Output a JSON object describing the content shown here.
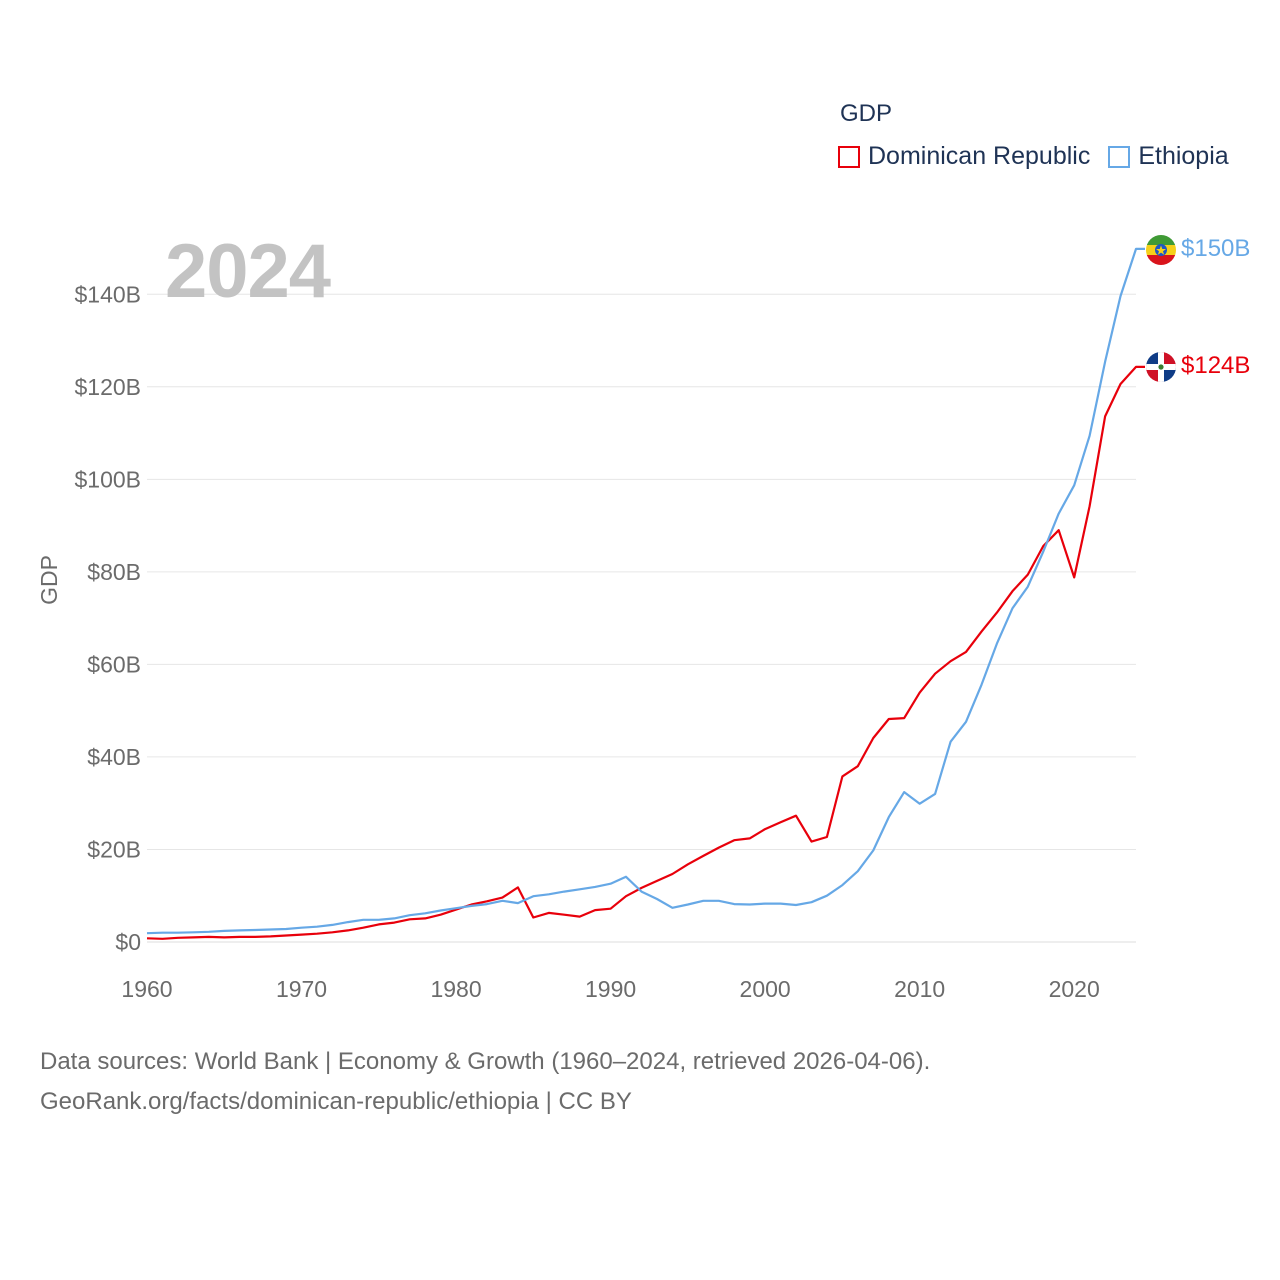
{
  "colors": {
    "dominican": "#e8000b",
    "ethiopia": "#66a8e6",
    "grid": "#e6e6e6",
    "text": "#6b6b6b"
  },
  "legend": {
    "title": "GDP",
    "items": [
      "Dominican Republic",
      "Ethiopia"
    ]
  },
  "year_label": "2024",
  "source": {
    "line1": "Data sources: World Bank | Economy & Growth (1960–2024, retrieved 2026-04-06).",
    "line2": "GeoRank.org/facts/dominican-republic/ethiopia | CC BY"
  },
  "chart_data": {
    "type": "line",
    "title": "GDP",
    "xlabel": "",
    "ylabel": "GDP",
    "xlim": [
      1960,
      2024
    ],
    "ylim": [
      0,
      150
    ],
    "x_ticks": [
      1960,
      1970,
      1980,
      1990,
      2000,
      2010,
      2020
    ],
    "x_tick_labels": [
      "1960",
      "1970",
      "1980",
      "1990",
      "2000",
      "2010",
      "2020"
    ],
    "y_ticks": [
      0,
      20,
      40,
      60,
      80,
      100,
      120,
      140
    ],
    "y_tick_labels": [
      "$0",
      "$20B",
      "$40B",
      "$60B",
      "$80B",
      "$100B",
      "$120B",
      "$140B"
    ],
    "grid": true,
    "legend_position": "top-right",
    "x": [
      1960,
      1961,
      1962,
      1963,
      1964,
      1965,
      1966,
      1967,
      1968,
      1969,
      1970,
      1971,
      1972,
      1973,
      1974,
      1975,
      1976,
      1977,
      1978,
      1979,
      1980,
      1981,
      1982,
      1983,
      1984,
      1985,
      1986,
      1987,
      1988,
      1989,
      1990,
      1991,
      1992,
      1993,
      1994,
      1995,
      1996,
      1997,
      1998,
      1999,
      2000,
      2001,
      2002,
      2003,
      2004,
      2005,
      2006,
      2007,
      2008,
      2009,
      2010,
      2011,
      2012,
      2013,
      2014,
      2015,
      2016,
      2017,
      2018,
      2019,
      2020,
      2021,
      2022,
      2023,
      2024
    ],
    "series": [
      {
        "name": "Dominican Republic",
        "color": "#e8000b",
        "end_label": "$124B",
        "values": [
          0.8,
          0.7,
          0.9,
          1.0,
          1.1,
          1.0,
          1.1,
          1.1,
          1.2,
          1.4,
          1.6,
          1.8,
          2.1,
          2.5,
          3.1,
          3.8,
          4.2,
          4.9,
          5.1,
          5.9,
          7.0,
          8.1,
          8.8,
          9.6,
          11.8,
          5.3,
          6.3,
          5.9,
          5.5,
          6.9,
          7.2,
          9.9,
          11.7,
          13.2,
          14.7,
          16.8,
          18.6,
          20.4,
          22.0,
          22.4,
          24.4,
          25.9,
          27.3,
          21.7,
          22.7,
          35.8,
          38.0,
          44.1,
          48.2,
          48.4,
          53.9,
          58.0,
          60.7,
          62.7,
          67.1,
          71.2,
          75.8,
          79.4,
          85.6,
          89.0,
          78.8,
          94.2,
          113.6,
          120.6,
          124.3
        ]
      },
      {
        "name": "Ethiopia",
        "color": "#66a8e6",
        "end_label": "$150B",
        "values": [
          1.9,
          2.0,
          2.0,
          2.1,
          2.2,
          2.4,
          2.5,
          2.6,
          2.7,
          2.8,
          3.1,
          3.3,
          3.7,
          4.3,
          4.8,
          4.8,
          5.1,
          5.8,
          6.2,
          6.8,
          7.3,
          7.8,
          8.2,
          8.9,
          8.4,
          9.9,
          10.3,
          10.9,
          11.4,
          11.9,
          12.6,
          14.1,
          10.9,
          9.3,
          7.4,
          8.1,
          8.9,
          8.9,
          8.2,
          8.1,
          8.3,
          8.3,
          8.0,
          8.6,
          10.0,
          12.3,
          15.3,
          19.8,
          27.0,
          32.4,
          29.9,
          32.0,
          43.3,
          47.6,
          55.6,
          64.5,
          72.1,
          76.8,
          84.4,
          92.6,
          98.7,
          109.4,
          125.4,
          139.6,
          149.8
        ]
      }
    ]
  }
}
